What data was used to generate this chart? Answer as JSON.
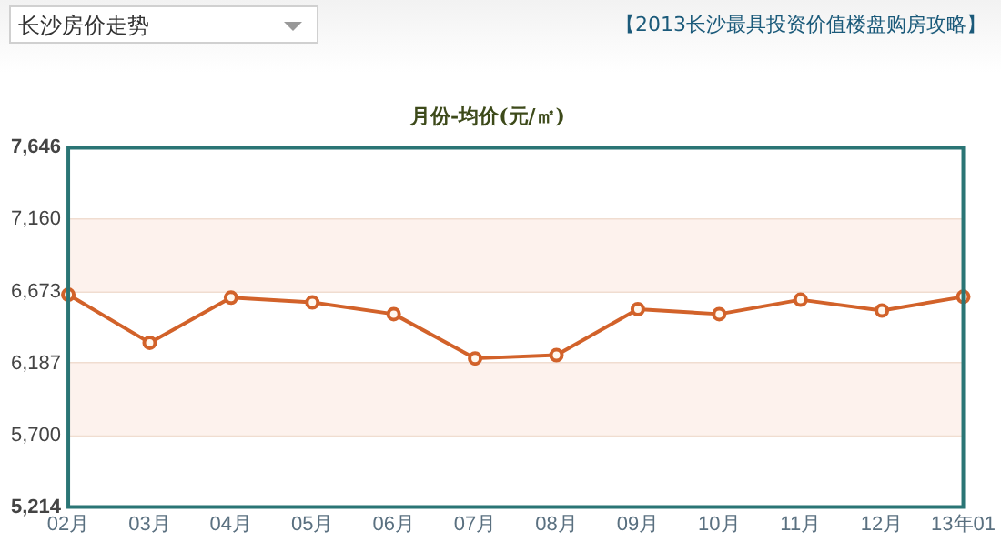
{
  "chart_data": {
    "type": "line",
    "title": "月份-均价(元/㎡)",
    "annotations": [
      "长沙房价走势",
      "【2013长沙最具投资价值楼盘购房攻略】"
    ],
    "categories": [
      "02月",
      "03月",
      "04月",
      "05月",
      "06月",
      "07月",
      "08月",
      "09月",
      "10月",
      "11月",
      "12月",
      "13年01"
    ],
    "series": [
      {
        "color": "#d2622a",
        "values": [
          6651,
          6326,
          6631,
          6599,
          6520,
          6220,
          6242,
          6553,
          6520,
          6617,
          6544,
          6637
        ]
      }
    ],
    "ylim": [
      5214,
      7646
    ],
    "yticks": [
      {
        "value": 5214,
        "label": "5,214"
      },
      {
        "value": 5700,
        "label": "5,700"
      },
      {
        "value": 6187,
        "label": "6,187"
      },
      {
        "value": 6673,
        "label": "6,673"
      },
      {
        "value": 7160,
        "label": "7,160"
      },
      {
        "value": 7646,
        "label": "7,646"
      }
    ],
    "bands": [
      {
        "axis": "y",
        "from": 6673,
        "to": 7160,
        "color": "#fdf2ed"
      },
      {
        "axis": "y",
        "from": 5700,
        "to": 6187,
        "color": "#fdf2ed"
      }
    ],
    "grid": "y",
    "legend": false,
    "marker": "circle",
    "line_style": "solid"
  }
}
